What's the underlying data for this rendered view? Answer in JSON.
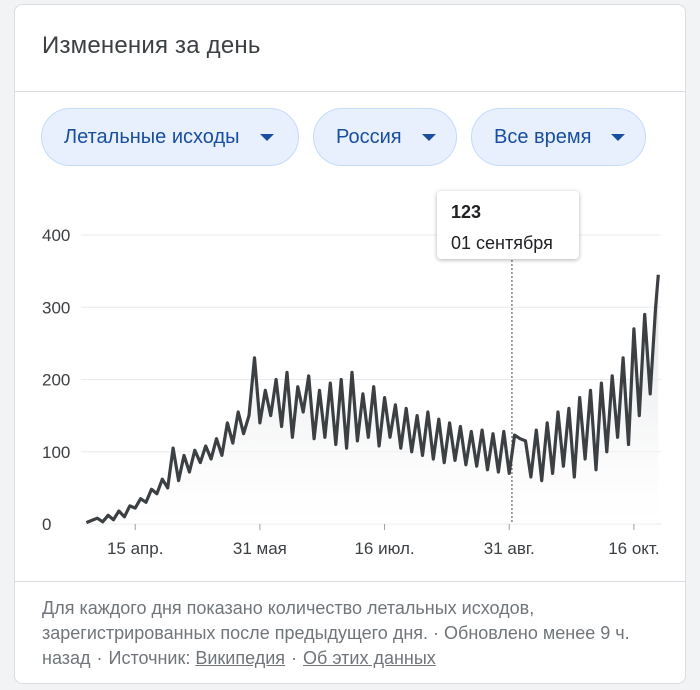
{
  "card": {
    "title": "Изменения за день"
  },
  "filters": {
    "metric": "Летальные исходы",
    "region": "Россия",
    "period": "Все время"
  },
  "tooltip": {
    "value": "123",
    "date": "01 сентября"
  },
  "footer": {
    "text": "Для каждого дня показано количество летальных исходов, зарегистрированных после предыдущего дня. · Обновлено менее 9 ч. назад",
    "source_label": "Источник:",
    "source_link": "Википедия",
    "about_link": "Об этих данных"
  },
  "colors": {
    "line": "#3c4043",
    "area_top": "#dadce0",
    "grid": "#e8eaed",
    "chip_bg": "#e8f0fe",
    "chip_text": "#1a4fa0"
  },
  "chart_data": {
    "type": "area",
    "title": "",
    "xlabel": "",
    "ylabel": "",
    "ylim": [
      0,
      400
    ],
    "yticks": [
      0,
      100,
      200,
      300,
      400
    ],
    "ytick_labels": [
      "0",
      "100",
      "200",
      "300",
      "400"
    ],
    "xticks": [
      "2020-04-15",
      "2020-05-31",
      "2020-07-16",
      "2020-08-31",
      "2020-10-16"
    ],
    "xtick_labels": [
      "15 апр.",
      "31 мая",
      "16 июл.",
      "31 авг.",
      "16 окт."
    ],
    "xlim": [
      "2020-03-26",
      "2020-10-26"
    ],
    "grid": true,
    "highlight": {
      "x": "2020-09-01",
      "y": 123
    },
    "series": [
      {
        "x": [
          "2020-03-28",
          "2020-03-30",
          "2020-04-01",
          "2020-04-03",
          "2020-04-05",
          "2020-04-07",
          "2020-04-09",
          "2020-04-11",
          "2020-04-13",
          "2020-04-15",
          "2020-04-17",
          "2020-04-19",
          "2020-04-21",
          "2020-04-23",
          "2020-04-25",
          "2020-04-27",
          "2020-04-29",
          "2020-05-01",
          "2020-05-03",
          "2020-05-05",
          "2020-05-07",
          "2020-05-09",
          "2020-05-11",
          "2020-05-13",
          "2020-05-15",
          "2020-05-17",
          "2020-05-19",
          "2020-05-21",
          "2020-05-23",
          "2020-05-25",
          "2020-05-27",
          "2020-05-29",
          "2020-05-31",
          "2020-06-02",
          "2020-06-04",
          "2020-06-06",
          "2020-06-08",
          "2020-06-10",
          "2020-06-12",
          "2020-06-14",
          "2020-06-16",
          "2020-06-18",
          "2020-06-20",
          "2020-06-22",
          "2020-06-24",
          "2020-06-26",
          "2020-06-28",
          "2020-06-30",
          "2020-07-02",
          "2020-07-04",
          "2020-07-06",
          "2020-07-08",
          "2020-07-10",
          "2020-07-12",
          "2020-07-14",
          "2020-07-16",
          "2020-07-18",
          "2020-07-20",
          "2020-07-22",
          "2020-07-24",
          "2020-07-26",
          "2020-07-28",
          "2020-07-30",
          "2020-08-01",
          "2020-08-03",
          "2020-08-05",
          "2020-08-07",
          "2020-08-09",
          "2020-08-11",
          "2020-08-13",
          "2020-08-15",
          "2020-08-17",
          "2020-08-19",
          "2020-08-21",
          "2020-08-23",
          "2020-08-25",
          "2020-08-27",
          "2020-08-29",
          "2020-08-31",
          "2020-09-02",
          "2020-09-04",
          "2020-09-06",
          "2020-09-08",
          "2020-09-10",
          "2020-09-12",
          "2020-09-14",
          "2020-09-16",
          "2020-09-18",
          "2020-09-20",
          "2020-09-22",
          "2020-09-24",
          "2020-09-26",
          "2020-09-28",
          "2020-09-30",
          "2020-10-02",
          "2020-10-04",
          "2020-10-06",
          "2020-10-08",
          "2020-10-10",
          "2020-10-12",
          "2020-10-14",
          "2020-10-16",
          "2020-10-18",
          "2020-10-20",
          "2020-10-22",
          "2020-10-24",
          "2020-10-25"
        ],
        "y": [
          2,
          5,
          8,
          3,
          12,
          6,
          18,
          10,
          25,
          22,
          35,
          30,
          48,
          42,
          62,
          50,
          105,
          60,
          95,
          72,
          102,
          85,
          108,
          90,
          118,
          95,
          140,
          112,
          155,
          125,
          150,
          230,
          140,
          185,
          150,
          200,
          135,
          210,
          120,
          190,
          155,
          205,
          118,
          185,
          120,
          195,
          110,
          200,
          105,
          210,
          115,
          180,
          120,
          190,
          108,
          175,
          120,
          165,
          105,
          160,
          100,
          150,
          95,
          155,
          90,
          145,
          85,
          140,
          88,
          135,
          82,
          128,
          80,
          130,
          75,
          125,
          72,
          128,
          70,
          123,
          118,
          115,
          65,
          130,
          60,
          140,
          70,
          155,
          80,
          160,
          65,
          175,
          90,
          185,
          75,
          195,
          100,
          205,
          120,
          230,
          110,
          270,
          150,
          290,
          180,
          300,
          345
        ]
      }
    ]
  }
}
